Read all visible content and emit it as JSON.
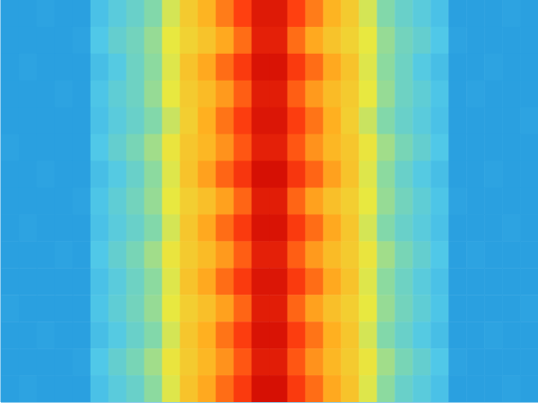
{
  "chart_data": {
    "type": "heatmap",
    "tick_labels": false,
    "grid": false,
    "x": [
      0,
      1,
      2,
      3,
      4,
      5,
      6,
      7,
      8,
      9,
      10,
      11,
      12,
      13,
      14,
      15,
      16,
      17,
      18,
      19,
      20,
      21,
      22,
      23,
      24,
      25,
      26,
      27,
      28,
      29
    ],
    "y": [
      0,
      1,
      2,
      3,
      4,
      5,
      6,
      7,
      8,
      9,
      10,
      11,
      12,
      13,
      14
    ],
    "xlim": [
      0,
      30
    ],
    "ylim": [
      0,
      15
    ],
    "zlim": [
      0,
      100
    ],
    "z": [
      [
        18,
        18,
        19,
        18,
        18,
        28,
        32,
        35,
        40,
        48,
        58,
        64,
        72,
        80,
        92,
        92,
        80,
        72,
        64,
        58,
        48,
        40,
        35,
        32,
        28,
        18,
        18,
        18,
        19,
        18
      ],
      [
        18,
        18,
        18,
        18,
        19,
        30,
        34,
        37,
        42,
        50,
        56,
        60,
        66,
        74,
        90,
        90,
        74,
        66,
        60,
        56,
        50,
        42,
        37,
        34,
        30,
        19,
        18,
        18,
        18,
        18
      ],
      [
        18,
        19,
        18,
        18,
        18,
        27,
        31,
        36,
        41,
        49,
        60,
        66,
        74,
        82,
        94,
        94,
        82,
        74,
        66,
        60,
        49,
        41,
        36,
        31,
        27,
        18,
        18,
        19,
        18,
        18
      ],
      [
        18,
        18,
        18,
        19,
        18,
        29,
        33,
        36,
        42,
        50,
        58,
        62,
        68,
        76,
        91,
        91,
        76,
        68,
        62,
        58,
        50,
        42,
        36,
        33,
        29,
        18,
        19,
        18,
        18,
        18
      ],
      [
        18,
        18,
        18,
        18,
        18,
        28,
        32,
        35,
        40,
        47,
        57,
        65,
        73,
        81,
        93,
        93,
        81,
        73,
        65,
        57,
        47,
        40,
        35,
        32,
        28,
        18,
        18,
        18,
        18,
        19
      ],
      [
        19,
        18,
        18,
        18,
        18,
        30,
        34,
        38,
        43,
        51,
        59,
        63,
        69,
        77,
        90,
        90,
        77,
        69,
        63,
        59,
        51,
        43,
        38,
        34,
        30,
        18,
        18,
        18,
        18,
        18
      ],
      [
        18,
        18,
        19,
        18,
        18,
        27,
        31,
        35,
        41,
        49,
        60,
        67,
        75,
        83,
        95,
        95,
        83,
        75,
        67,
        60,
        49,
        41,
        35,
        31,
        27,
        18,
        18,
        19,
        18,
        18
      ],
      [
        18,
        18,
        18,
        18,
        19,
        29,
        33,
        37,
        42,
        50,
        57,
        61,
        67,
        75,
        91,
        91,
        75,
        67,
        61,
        57,
        50,
        42,
        37,
        33,
        29,
        19,
        18,
        18,
        18,
        18
      ],
      [
        18,
        19,
        18,
        18,
        18,
        28,
        32,
        35,
        40,
        48,
        59,
        66,
        74,
        82,
        94,
        94,
        82,
        74,
        66,
        59,
        48,
        40,
        35,
        32,
        28,
        18,
        18,
        18,
        19,
        18
      ],
      [
        18,
        18,
        18,
        19,
        18,
        30,
        34,
        38,
        43,
        51,
        58,
        62,
        68,
        76,
        90,
        90,
        76,
        68,
        62,
        58,
        51,
        43,
        38,
        34,
        30,
        18,
        19,
        18,
        18,
        18
      ],
      [
        18,
        18,
        18,
        18,
        18,
        28,
        32,
        36,
        41,
        49,
        60,
        66,
        74,
        82,
        93,
        93,
        82,
        74,
        66,
        60,
        49,
        41,
        36,
        32,
        28,
        18,
        18,
        18,
        18,
        18
      ],
      [
        19,
        18,
        18,
        18,
        18,
        29,
        33,
        37,
        42,
        50,
        57,
        61,
        67,
        75,
        91,
        91,
        75,
        67,
        61,
        57,
        50,
        42,
        37,
        33,
        29,
        18,
        18,
        18,
        18,
        19
      ],
      [
        18,
        18,
        19,
        18,
        18,
        27,
        31,
        35,
        40,
        48,
        59,
        65,
        73,
        81,
        94,
        94,
        81,
        73,
        65,
        59,
        48,
        40,
        35,
        31,
        27,
        18,
        18,
        19,
        18,
        18
      ],
      [
        18,
        18,
        18,
        18,
        19,
        30,
        34,
        38,
        43,
        51,
        58,
        63,
        69,
        77,
        91,
        91,
        77,
        69,
        63,
        58,
        51,
        43,
        38,
        34,
        30,
        19,
        18,
        18,
        18,
        18
      ],
      [
        18,
        19,
        18,
        18,
        18,
        28,
        32,
        35,
        41,
        49,
        60,
        66,
        74,
        82,
        95,
        95,
        82,
        74,
        66,
        60,
        49,
        41,
        35,
        32,
        28,
        18,
        18,
        18,
        19,
        18
      ]
    ]
  }
}
